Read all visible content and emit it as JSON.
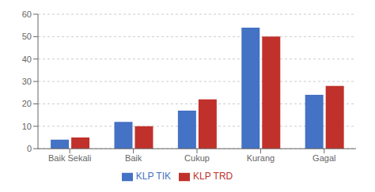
{
  "chart_data": {
    "type": "bar",
    "categories": [
      "Baik Sekali",
      "Baik",
      "Cukup",
      "Kurang",
      "Gagal"
    ],
    "series": [
      {
        "name": "KLP TIK",
        "color": "#4472C4",
        "values": [
          4,
          12,
          17,
          54,
          24
        ]
      },
      {
        "name": "KLP TRD",
        "color": "#C0312B",
        "values": [
          5,
          10,
          22,
          50,
          28
        ]
      }
    ],
    "ylim": [
      0,
      60
    ],
    "yticks": [
      0,
      10,
      20,
      30,
      40,
      50,
      60
    ],
    "grid": true,
    "legend": "bottom"
  }
}
